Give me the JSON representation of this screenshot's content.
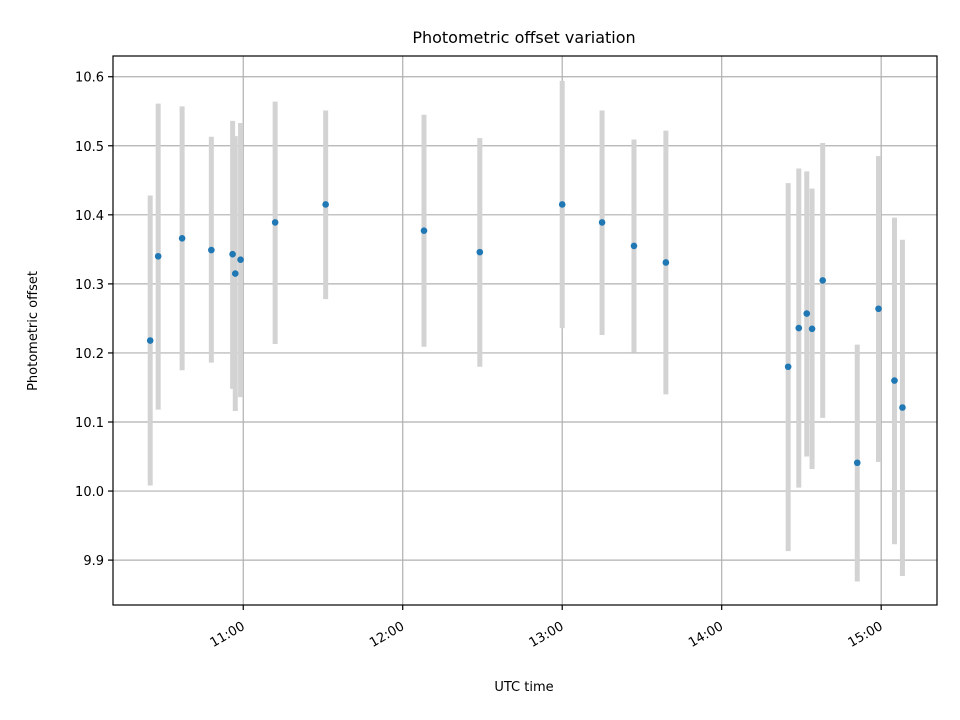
{
  "chart_data": {
    "type": "scatter",
    "title": "Photometric offset variation",
    "xlabel": "UTC time",
    "ylabel": "Photometric offset",
    "x_is_time": true,
    "xlim": [
      "10:11",
      "15:21"
    ],
    "ylim": [
      9.835,
      10.63
    ],
    "x_ticks": [
      "11:00",
      "12:00",
      "13:00",
      "14:00",
      "15:00"
    ],
    "y_ticks": [
      9.9,
      10.0,
      10.1,
      10.2,
      10.3,
      10.4,
      10.5,
      10.6
    ],
    "grid": true,
    "point_color": "#1f77b4",
    "errorbar_color": "#d3d3d3",
    "series": [
      {
        "points": [
          {
            "x": "10:25",
            "y": 10.218,
            "ylow": 10.008,
            "yhigh": 10.428
          },
          {
            "x": "10:28",
            "y": 10.34,
            "ylow": 10.118,
            "yhigh": 10.561
          },
          {
            "x": "10:37",
            "y": 10.366,
            "ylow": 10.175,
            "yhigh": 10.557
          },
          {
            "x": "10:48",
            "y": 10.349,
            "ylow": 10.186,
            "yhigh": 10.513
          },
          {
            "x": "10:56",
            "y": 10.343,
            "ylow": 10.148,
            "yhigh": 10.536
          },
          {
            "x": "10:57",
            "y": 10.315,
            "ylow": 10.116,
            "yhigh": 10.514
          },
          {
            "x": "10:59",
            "y": 10.335,
            "ylow": 10.136,
            "yhigh": 10.533
          },
          {
            "x": "11:12",
            "y": 10.389,
            "ylow": 10.213,
            "yhigh": 10.564
          },
          {
            "x": "11:31",
            "y": 10.415,
            "ylow": 10.278,
            "yhigh": 10.551
          },
          {
            "x": "12:08",
            "y": 10.377,
            "ylow": 10.209,
            "yhigh": 10.545
          },
          {
            "x": "12:29",
            "y": 10.346,
            "ylow": 10.18,
            "yhigh": 10.511
          },
          {
            "x": "13:00",
            "y": 10.415,
            "ylow": 10.236,
            "yhigh": 10.594
          },
          {
            "x": "13:15",
            "y": 10.389,
            "ylow": 10.226,
            "yhigh": 10.551
          },
          {
            "x": "13:27",
            "y": 10.355,
            "ylow": 10.201,
            "yhigh": 10.509
          },
          {
            "x": "13:39",
            "y": 10.331,
            "ylow": 10.14,
            "yhigh": 10.522
          },
          {
            "x": "14:25",
            "y": 10.18,
            "ylow": 9.913,
            "yhigh": 10.446
          },
          {
            "x": "14:29",
            "y": 10.236,
            "ylow": 10.005,
            "yhigh": 10.467
          },
          {
            "x": "14:32",
            "y": 10.257,
            "ylow": 10.05,
            "yhigh": 10.463
          },
          {
            "x": "14:34",
            "y": 10.235,
            "ylow": 10.032,
            "yhigh": 10.438
          },
          {
            "x": "14:38",
            "y": 10.305,
            "ylow": 10.106,
            "yhigh": 10.504
          },
          {
            "x": "14:51",
            "y": 10.041,
            "ylow": 9.869,
            "yhigh": 10.212
          },
          {
            "x": "14:59",
            "y": 10.264,
            "ylow": 10.042,
            "yhigh": 10.485
          },
          {
            "x": "15:05",
            "y": 10.16,
            "ylow": 9.923,
            "yhigh": 10.396
          },
          {
            "x": "15:08",
            "y": 10.121,
            "ylow": 9.877,
            "yhigh": 10.364
          }
        ]
      }
    ]
  }
}
